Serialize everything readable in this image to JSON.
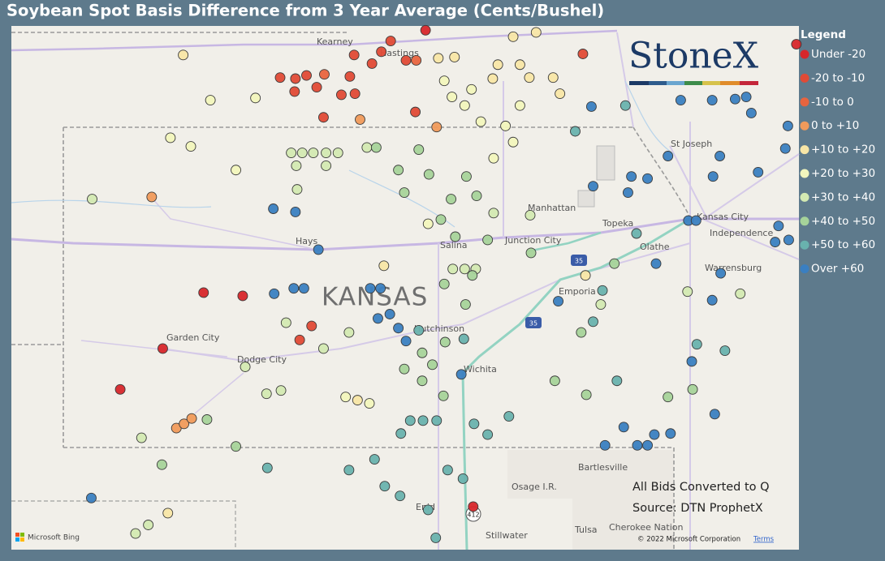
{
  "chart_data": {
    "type": "map",
    "title": "Soybean Spot Basis Difference from 3 Year Average (Cents/Bushel)",
    "legend_title": "Legend",
    "logo": "StoneX",
    "notes": [
      "All Bids Converted to Q",
      "Source: DTN ProphetX"
    ],
    "attribution": [
      "Microsoft Bing",
      "© 2022 Microsoft Corporation",
      "Terms"
    ],
    "places": [
      "Kearney",
      "Hastings",
      "St Joseph",
      "Kansas City",
      "Independence",
      "Manhattan",
      "Topeka",
      "Olathe",
      "Hays",
      "Salina",
      "Junction City",
      "KANSAS",
      "Emporia",
      "Warrensburg",
      "Garden City",
      "Dodge City",
      "Hutchinson",
      "Wichita",
      "Bartlesville",
      "Osage I.R.",
      "Enid",
      "Stillwater",
      "Tulsa",
      "Cherokee Nation",
      "412",
      "35",
      "35"
    ],
    "xlim": [
      -102.65,
      -93.39
    ],
    "ylim": [
      36.01,
      40.88
    ],
    "series": [
      {
        "name": "Under -20",
        "color": "#d7262b",
        "x": [
          -97.78,
          -100.39,
          -99.93,
          -100.87,
          -101.37,
          -97.22,
          -93.42
        ],
        "y": [
          40.84,
          38.4,
          38.37,
          37.88,
          37.5,
          36.41,
          40.71
        ]
      },
      {
        "name": "-20 to -10",
        "color": "#e04a36",
        "x": [
          -98.62,
          -98.41,
          -99.31,
          -99.18,
          -99.06,
          -99.32,
          -98.67,
          -98.77,
          -98.61,
          -97.9,
          -98.01,
          -98.3,
          -98.19,
          -95.93,
          -99.12,
          -99.26,
          -99.49,
          -98.98
        ],
        "y": [
          40.61,
          40.53,
          40.39,
          40.42,
          40.31,
          40.27,
          40.41,
          40.24,
          40.25,
          40.08,
          40.56,
          40.64,
          40.74,
          40.62,
          38.09,
          37.96,
          40.4,
          40.03
        ]
      },
      {
        "name": "-10 to 0",
        "color": "#e8643f",
        "x": [
          -98.97,
          -97.89
        ],
        "y": [
          40.43,
          40.56
        ]
      },
      {
        "name": "0 to +10",
        "color": "#f09a5b",
        "x": [
          -98.55,
          -97.65,
          -101.0,
          -100.71,
          -100.62,
          -100.53
        ],
        "y": [
          40.01,
          39.94,
          39.29,
          37.14,
          37.18,
          37.23
        ]
      },
      {
        "name": "+10 to +20",
        "color": "#f8e6a6",
        "x": [
          -100.63,
          -97.44,
          -97.63,
          -96.99,
          -96.56,
          -96.67,
          -96.28,
          -96.2,
          -96.48,
          -96.75,
          -98.27,
          -95.9,
          -100.81,
          -98.58,
          -96.93
        ],
        "y": [
          40.61,
          40.59,
          40.58,
          40.39,
          40.4,
          40.52,
          40.4,
          40.25,
          40.82,
          40.78,
          38.65,
          38.56,
          36.35,
          37.4,
          40.52
        ]
      },
      {
        "name": "+20 to +30",
        "color": "#f2f6bd",
        "x": [
          -97.56,
          -97.47,
          -97.32,
          -97.13,
          -96.84,
          -96.75,
          -96.67,
          -97.24,
          -100.54,
          -100.78,
          -100.01,
          -100.31,
          -99.78,
          -98.72,
          -98.44,
          -96.98,
          -97.75
        ],
        "y": [
          40.37,
          40.22,
          40.14,
          39.99,
          39.95,
          39.8,
          40.14,
          40.29,
          39.76,
          39.84,
          39.54,
          40.19,
          40.21,
          37.43,
          37.37,
          39.65,
          39.04
        ]
      },
      {
        "name": "+30 to +40",
        "color": "#d3e9b2",
        "x": [
          -99.36,
          -99.23,
          -99.1,
          -98.95,
          -98.81,
          -99.3,
          -98.95,
          -98.47,
          -99.29,
          -99.65,
          -99.48,
          -99.9,
          -98.68,
          -99.42,
          -98.98,
          -97.32,
          -97.19,
          -97.46,
          -96.55,
          -96.98,
          -101.7,
          -101.19,
          -101.04,
          -101.12,
          -95.72,
          -94.08,
          -94.7
        ],
        "y": [
          39.7,
          39.7,
          39.7,
          39.7,
          39.7,
          39.58,
          39.58,
          39.75,
          39.36,
          37.46,
          37.49,
          37.71,
          38.03,
          38.12,
          37.88,
          38.62,
          38.62,
          38.62,
          39.12,
          39.14,
          39.27,
          36.16,
          36.24,
          37.05,
          38.29,
          38.39,
          38.41
        ]
      },
      {
        "name": "+40 to +50",
        "color": "#a6d39a",
        "x": [
          -97.86,
          -97.74,
          -98.1,
          -98.03,
          -97.48,
          -97.3,
          -97.18,
          -97.6,
          -97.43,
          -97.05,
          -97.56,
          -97.31,
          -97.82,
          -97.7,
          -97.55,
          -98.03,
          -97.82,
          -97.57,
          -100.35,
          -100.01,
          -100.88,
          -95.95,
          -96.26,
          -95.89,
          -94.93,
          -94.64,
          -98.36,
          -95.56,
          -96.54,
          -97.23
        ],
        "y": [
          39.73,
          39.5,
          39.54,
          39.33,
          39.27,
          39.48,
          39.3,
          39.08,
          38.92,
          38.89,
          38.48,
          38.29,
          37.84,
          37.73,
          37.94,
          37.69,
          37.58,
          37.44,
          37.22,
          36.97,
          36.8,
          38.03,
          37.58,
          37.45,
          37.43,
          37.5,
          39.75,
          38.67,
          38.77,
          38.56
        ]
      },
      {
        "name": "+50 to +60",
        "color": "#69b2ae",
        "x": [
          -97.96,
          -97.81,
          -97.65,
          -98.07,
          -98.38,
          -98.26,
          -98.08,
          -97.75,
          -97.66,
          -97.52,
          -97.21,
          -97.05,
          -96.8,
          -99.64,
          -98.68,
          -96.02,
          -95.43,
          -95.3,
          -95.7,
          -95.81,
          -94.59,
          -97.86,
          -97.34,
          -95.53,
          -94.26,
          -97.33
        ],
        "y": [
          37.21,
          37.21,
          37.21,
          37.09,
          36.85,
          36.6,
          36.51,
          36.38,
          36.12,
          36.75,
          37.18,
          37.08,
          37.25,
          36.77,
          36.75,
          39.9,
          40.14,
          38.95,
          38.42,
          38.13,
          37.92,
          38.05,
          36.67,
          37.58,
          37.86,
          37.97
        ]
      },
      {
        "name": "Over +60",
        "color": "#3a7fc1",
        "x": [
          -99.57,
          -99.31,
          -99.04,
          -99.56,
          -99.33,
          -99.21,
          -98.43,
          -98.31,
          -98.2,
          -98.34,
          -98.1,
          -98.01,
          -97.36,
          -96.22,
          -95.81,
          -95.36,
          -95.17,
          -95.4,
          -94.69,
          -94.6,
          -94.93,
          -94.4,
          -94.32,
          -94.41,
          -94.14,
          -94.01,
          -93.95,
          -93.87,
          -93.67,
          -93.51,
          -93.63,
          -94.31,
          -94.41,
          -94.65,
          -94.38,
          -95.67,
          -95.45,
          -95.29,
          -95.17,
          -94.9,
          -95.09,
          -101.71,
          -95.83,
          -95.07,
          -94.78,
          -93.55,
          -93.52
        ],
        "y": [
          39.18,
          39.15,
          38.8,
          38.39,
          38.44,
          38.44,
          38.44,
          38.44,
          38.2,
          38.16,
          38.07,
          37.95,
          37.64,
          38.32,
          39.39,
          39.48,
          39.46,
          39.33,
          39.07,
          39.07,
          39.67,
          39.48,
          39.67,
          40.19,
          40.2,
          40.22,
          40.07,
          39.52,
          38.87,
          38.89,
          39.02,
          38.58,
          38.33,
          37.76,
          37.27,
          36.98,
          37.15,
          36.98,
          36.98,
          37.09,
          37.08,
          36.49,
          40.13,
          38.67,
          40.19,
          39.74,
          39.95
        ]
      }
    ]
  }
}
